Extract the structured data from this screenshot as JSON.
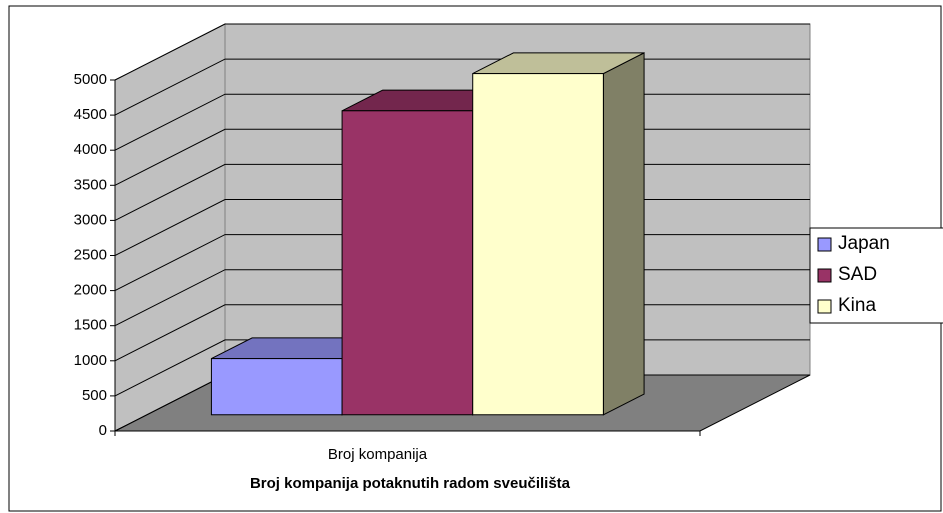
{
  "chart_data": {
    "type": "bar3d",
    "title": "Broj kompanija potaknutih radom sveučilišta",
    "categories": [
      "Broj kompanija"
    ],
    "series": [
      {
        "name": "Japan",
        "color": "#9999ff",
        "values": [
          800
        ]
      },
      {
        "name": "SAD",
        "color": "#993366",
        "values": [
          4330
        ]
      },
      {
        "name": "Kina",
        "color": "#ffffcc",
        "values": [
          4860
        ]
      }
    ],
    "ylim": [
      0,
      5000
    ],
    "yticks": [
      0,
      500,
      1000,
      1500,
      2000,
      2500,
      3000,
      3500,
      4000,
      4500,
      5000
    ],
    "grid": true,
    "legend": "right"
  }
}
